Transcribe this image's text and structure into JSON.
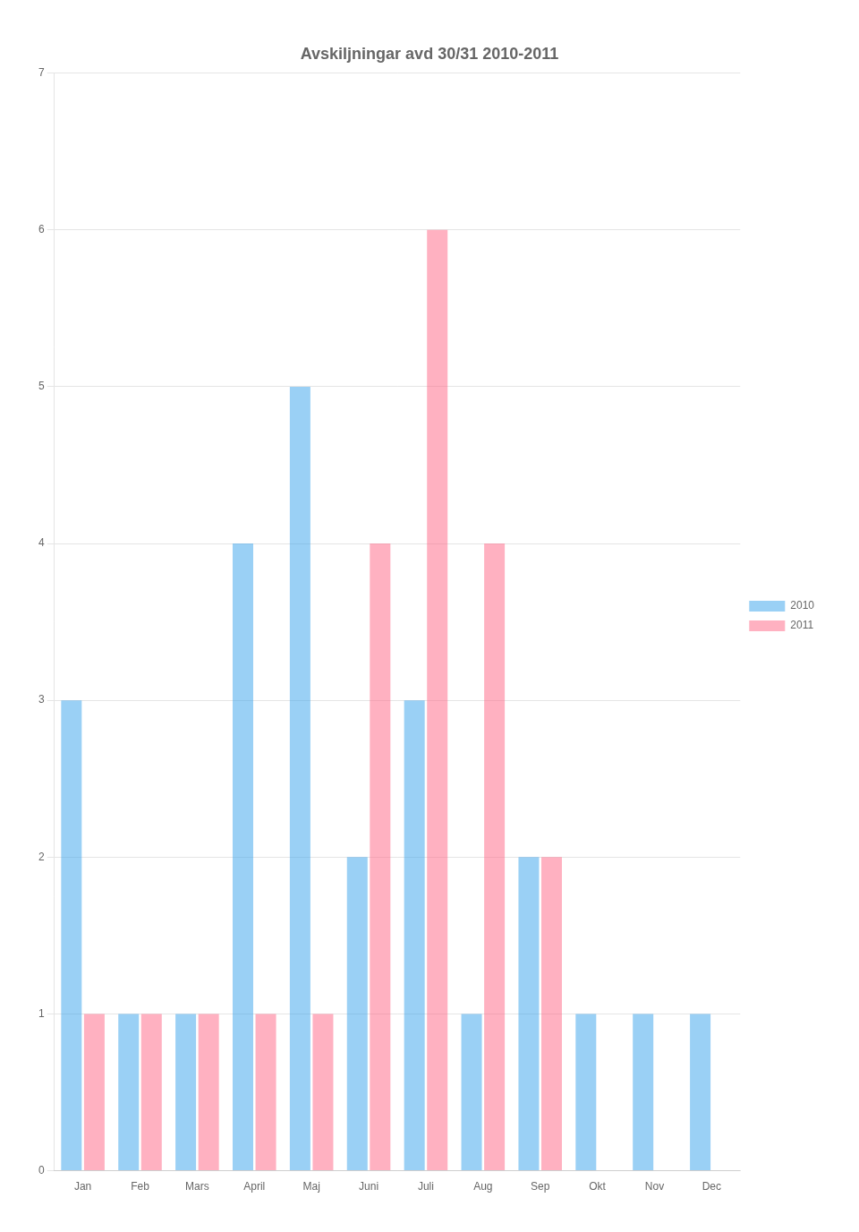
{
  "chart_data": {
    "type": "bar",
    "title": "Avskiljningar avd 30/31 2010-2011",
    "categories": [
      "Jan",
      "Feb",
      "Mars",
      "April",
      "Maj",
      "Juni",
      "Juli",
      "Aug",
      "Sep",
      "Okt",
      "Nov",
      "Dec"
    ],
    "series": [
      {
        "name": "2010",
        "values": [
          3,
          1,
          1,
          4,
          5,
          2,
          3,
          1,
          2,
          1,
          1,
          1
        ]
      },
      {
        "name": "2011",
        "values": [
          1,
          1,
          1,
          1,
          1,
          4,
          6,
          4,
          2,
          0,
          0,
          0
        ]
      }
    ],
    "ylim": [
      0,
      7
    ],
    "yticks": [
      0,
      1,
      2,
      3,
      4,
      5,
      6,
      7
    ],
    "grid": "y",
    "legend": "right"
  }
}
